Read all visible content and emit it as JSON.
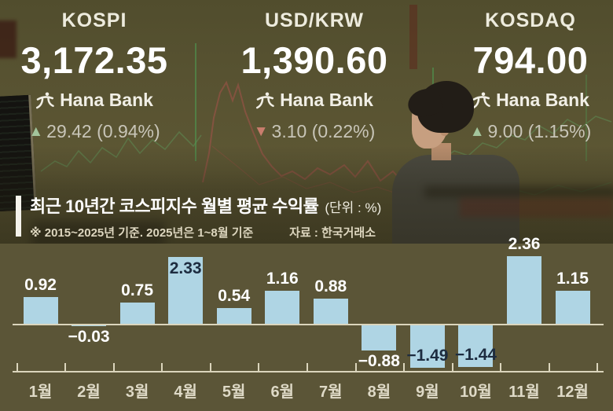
{
  "board": {
    "up_color": "#a3c59c",
    "down_color": "#c97d6d",
    "tickers": [
      {
        "name": "KOSPI",
        "value": "3,172.35",
        "brand": "Hana Bank",
        "direction": "up",
        "change": "29.42 (0.94%)"
      },
      {
        "name": "USD/KRW",
        "value": "1,390.60",
        "brand": "Hana Bank",
        "direction": "down",
        "change": "3.10 (0.22%)"
      },
      {
        "name": "KOSDAQ",
        "value": "794.00",
        "brand": "Hana Bank",
        "direction": "up",
        "change": "9.00 (1.15%)"
      }
    ]
  },
  "chart_data": {
    "type": "bar",
    "title": "최근 10년간 코스피지수 월별 평균 수익률",
    "unit_label": "(단위 : %)",
    "footnote": "※ 2015~2025년 기준. 2025년은 1~8월 기준",
    "source": "자료 : 한국거래소",
    "categories": [
      "1월",
      "2월",
      "3월",
      "4월",
      "5월",
      "6월",
      "7월",
      "8월",
      "9월",
      "10월",
      "11월",
      "12월"
    ],
    "values": [
      0.92,
      -0.03,
      0.75,
      2.33,
      0.54,
      1.16,
      0.88,
      -0.88,
      -1.49,
      -1.44,
      2.36,
      1.15
    ],
    "label_positions": [
      "above",
      "below",
      "above",
      "inside",
      "above",
      "above",
      "above",
      "below",
      "inside",
      "inside",
      "above",
      "above"
    ],
    "bar_color": "#afd5e4",
    "value_label_color": "#ffffff",
    "inside_label_color": "#1d2c40",
    "axis_color": "#dbd5bc",
    "month_label_color": "#ded9c6",
    "ylim": [
      -1.8,
      2.6
    ],
    "grid": false,
    "zero_line": true,
    "legend": "none"
  }
}
